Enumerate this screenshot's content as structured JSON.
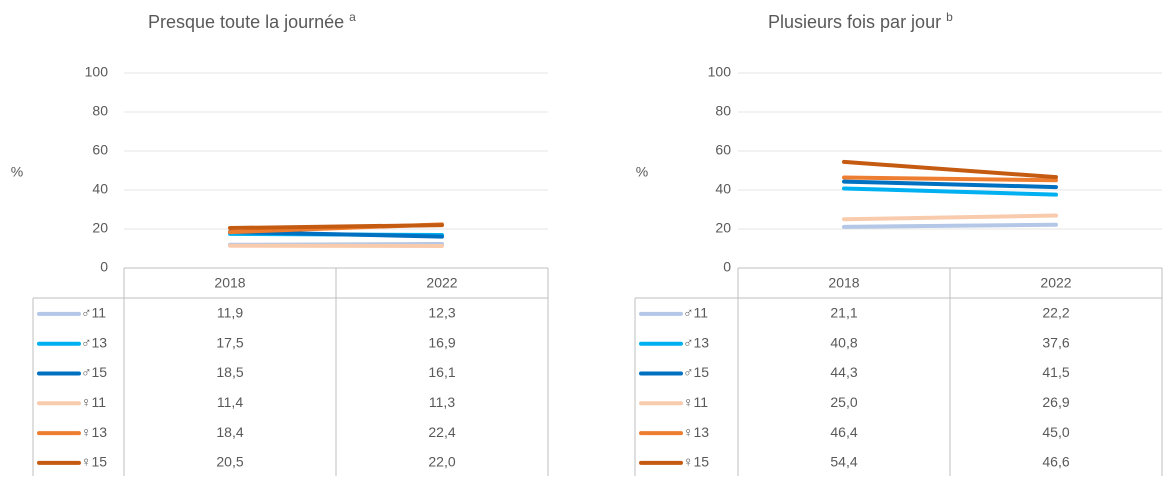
{
  "colors": {
    "text": "#595959",
    "grid": "#e6e6e6",
    "table_border": "#bfbfbf",
    "background": "#ffffff"
  },
  "chart_data": [
    {
      "type": "line",
      "title": "Presque toute la journée",
      "title_sup": "a",
      "ylabel": "%",
      "ylim": [
        0,
        100
      ],
      "yticks": [
        0,
        20,
        40,
        60,
        80,
        100
      ],
      "grid": true,
      "categories": [
        "2018",
        "2022"
      ],
      "series": [
        {
          "name": "♂11",
          "color": "#b4c7e7",
          "values": [
            11.9,
            12.3
          ],
          "labels": [
            "11,9",
            "12,3"
          ]
        },
        {
          "name": "♂13",
          "color": "#00b0f0",
          "values": [
            17.5,
            16.9
          ],
          "labels": [
            "17,5",
            "16,9"
          ]
        },
        {
          "name": "♂15",
          "color": "#0070c0",
          "values": [
            18.5,
            16.1
          ],
          "labels": [
            "18,5",
            "16,1"
          ]
        },
        {
          "name": "♀11",
          "color": "#f8cbad",
          "values": [
            11.4,
            11.3
          ],
          "labels": [
            "11,4",
            "11,3"
          ]
        },
        {
          "name": "♀13",
          "color": "#ed7d31",
          "values": [
            18.4,
            22.4
          ],
          "labels": [
            "18,4",
            "22,4"
          ]
        },
        {
          "name": "♀15",
          "color": "#c55a11",
          "values": [
            20.5,
            22.0
          ],
          "labels": [
            "20,5",
            "22,0"
          ]
        }
      ]
    },
    {
      "type": "line",
      "title": "Plusieurs fois par jour",
      "title_sup": "b",
      "ylabel": "%",
      "ylim": [
        0,
        100
      ],
      "yticks": [
        0,
        20,
        40,
        60,
        80,
        100
      ],
      "grid": true,
      "categories": [
        "2018",
        "2022"
      ],
      "series": [
        {
          "name": "♂11",
          "color": "#b4c7e7",
          "values": [
            21.1,
            22.2
          ],
          "labels": [
            "21,1",
            "22,2"
          ]
        },
        {
          "name": "♂13",
          "color": "#00b0f0",
          "values": [
            40.8,
            37.6
          ],
          "labels": [
            "40,8",
            "37,6"
          ]
        },
        {
          "name": "♂15",
          "color": "#0070c0",
          "values": [
            44.3,
            41.5
          ],
          "labels": [
            "44,3",
            "41,5"
          ]
        },
        {
          "name": "♀11",
          "color": "#f8cbad",
          "values": [
            25.0,
            26.9
          ],
          "labels": [
            "25,0",
            "26,9"
          ]
        },
        {
          "name": "♀13",
          "color": "#ed7d31",
          "values": [
            46.4,
            45.0
          ],
          "labels": [
            "46,4",
            "45,0"
          ]
        },
        {
          "name": "♀15",
          "color": "#c55a11",
          "values": [
            54.4,
            46.6
          ],
          "labels": [
            "54,4",
            "46,6"
          ]
        }
      ]
    }
  ]
}
